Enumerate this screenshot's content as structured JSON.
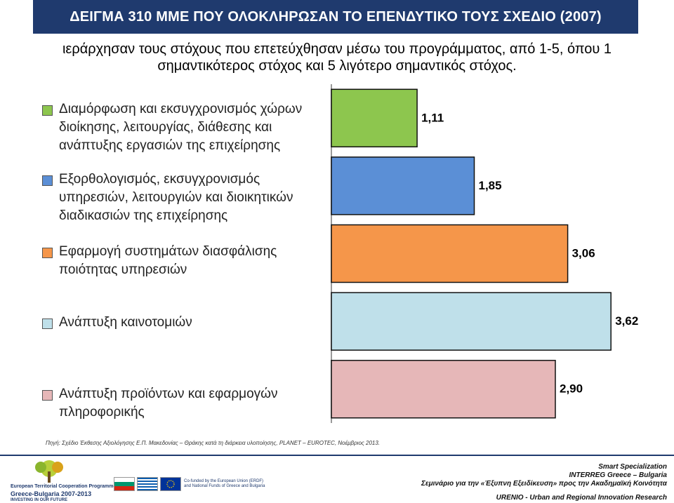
{
  "title": "ΔΕΙΓΜΑ 310 ΜΜΕ ΠΟΥ ΟΛΟΚΛΗΡΩΣΑΝ ΤΟ ΕΠΕΝΔΥΤΙΚΟ ΤΟΥΣ ΣΧΕΔΙΟ (2007)",
  "subtitle": {
    "line1": "ιεράρχησαν τους στόχους που επετεύχθησαν μέσω του προγράμματος, από 1-5, όπου 1",
    "line2": "σημαντικότερος στόχος και 5 λιγότερο σημαντικός στόχος."
  },
  "chart_data": {
    "type": "bar",
    "orientation": "horizontal",
    "categories": [
      "Διαμόρφωση και εκσυγχρονισμός χώρων διοίκησης, λειτουργίας, διάθεσης και ανάπτυξης εργασιών της επιχείρησης",
      "Εξορθολογισμός, εκσυγχρονισμός υπηρεσιών, λειτουργιών και διοικητικών διαδικασιών της επιχείρησης",
      "Εφαρμογή συστημάτων διασφάλισης ποιότητας υπηρεσιών",
      "Ανάπτυξη καινοτομιών",
      "Ανάπτυξη προϊόντων και εφαρμογών πληροφορικής"
    ],
    "values": [
      1.11,
      1.85,
      3.06,
      3.62,
      2.9
    ],
    "value_labels": [
      "1,11",
      "1,85",
      "3,06",
      "3,62",
      "2,90"
    ],
    "colors": [
      "#8dc64e",
      "#5b8fd6",
      "#f5964a",
      "#bfe0ea",
      "#e6b7b8"
    ],
    "xlim": [
      0,
      3.8
    ],
    "legend_position": "left",
    "grid": false
  },
  "source": "Πηγή: Σχέδιο Έκθεσης Αξιολόγησης Ε.Π. Μακεδονίας – Θράκης κατά τη διάρκεια υλοποίησης, PLANET – EUROTEC, Νοέμβριος 2013.",
  "footer": {
    "logo_line1": "European Territorial Cooperation Programme",
    "logo_line2": "Greece-Bulgaria 2007-2013",
    "logo_line3": "INVESTING IN OUR FUTURE",
    "cofund": "Co-funded by the European Union (ERDF) and National Funds of Greece and Bulgaria",
    "right1": "Smart Specialization",
    "right2": "INTERREG Greece – Bulgaria",
    "right3": "Σεμινάριο για την «Έξυπνη Εξειδίκευση» προς την Ακαδημαϊκή Κοινότητα",
    "right4": "URENIO - Urban and Regional Innovation Research"
  }
}
